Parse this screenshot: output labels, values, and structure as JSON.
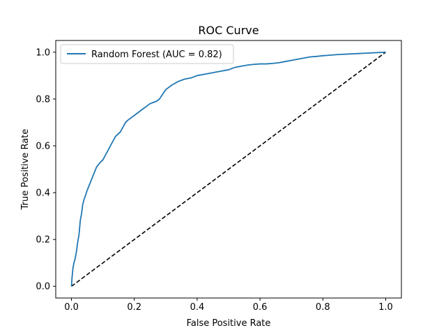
{
  "chart_data": {
    "type": "line",
    "title": "ROC Curve",
    "xlabel": "False Positive Rate",
    "ylabel": "True Positive Rate",
    "xlim": [
      -0.05,
      1.05
    ],
    "ylim": [
      -0.05,
      1.05
    ],
    "xticks": [
      "0.0",
      "0.2",
      "0.4",
      "0.6",
      "0.8",
      "1.0"
    ],
    "yticks": [
      "0.0",
      "0.2",
      "0.4",
      "0.6",
      "0.8",
      "1.0"
    ],
    "grid": false,
    "legend_position": "top-left",
    "series": [
      {
        "name": "Random Forest (AUC = 0.82)",
        "color": "#1f77b4",
        "style": "solid",
        "x": [
          0.0,
          0.002,
          0.005,
          0.008,
          0.012,
          0.016,
          0.02,
          0.024,
          0.028,
          0.032,
          0.036,
          0.04,
          0.045,
          0.05,
          0.056,
          0.062,
          0.068,
          0.074,
          0.08,
          0.086,
          0.092,
          0.1,
          0.108,
          0.116,
          0.124,
          0.132,
          0.14,
          0.148,
          0.156,
          0.164,
          0.172,
          0.18,
          0.19,
          0.2,
          0.21,
          0.22,
          0.23,
          0.24,
          0.25,
          0.26,
          0.27,
          0.28,
          0.29,
          0.3,
          0.31,
          0.32,
          0.34,
          0.36,
          0.38,
          0.4,
          0.42,
          0.44,
          0.46,
          0.48,
          0.5,
          0.52,
          0.54,
          0.56,
          0.58,
          0.6,
          0.62,
          0.64,
          0.66,
          0.68,
          0.7,
          0.72,
          0.74,
          0.76,
          0.78,
          0.8,
          0.82,
          0.85,
          0.88,
          0.91,
          0.94,
          0.97,
          1.0
        ],
        "y": [
          0.0,
          0.04,
          0.08,
          0.1,
          0.12,
          0.15,
          0.19,
          0.22,
          0.28,
          0.31,
          0.35,
          0.37,
          0.39,
          0.41,
          0.43,
          0.45,
          0.47,
          0.49,
          0.51,
          0.52,
          0.53,
          0.54,
          0.56,
          0.58,
          0.6,
          0.62,
          0.64,
          0.65,
          0.66,
          0.68,
          0.7,
          0.71,
          0.72,
          0.73,
          0.74,
          0.75,
          0.76,
          0.77,
          0.78,
          0.785,
          0.79,
          0.8,
          0.82,
          0.84,
          0.85,
          0.86,
          0.875,
          0.885,
          0.89,
          0.9,
          0.905,
          0.91,
          0.915,
          0.92,
          0.925,
          0.935,
          0.94,
          0.945,
          0.948,
          0.95,
          0.95,
          0.952,
          0.955,
          0.96,
          0.965,
          0.97,
          0.975,
          0.98,
          0.982,
          0.985,
          0.987,
          0.99,
          0.992,
          0.994,
          0.996,
          0.998,
          1.0
        ]
      },
      {
        "name": "",
        "color": "#000000",
        "style": "dashed",
        "x": [
          0.0,
          1.0
        ],
        "y": [
          0.0,
          1.0
        ]
      }
    ]
  }
}
